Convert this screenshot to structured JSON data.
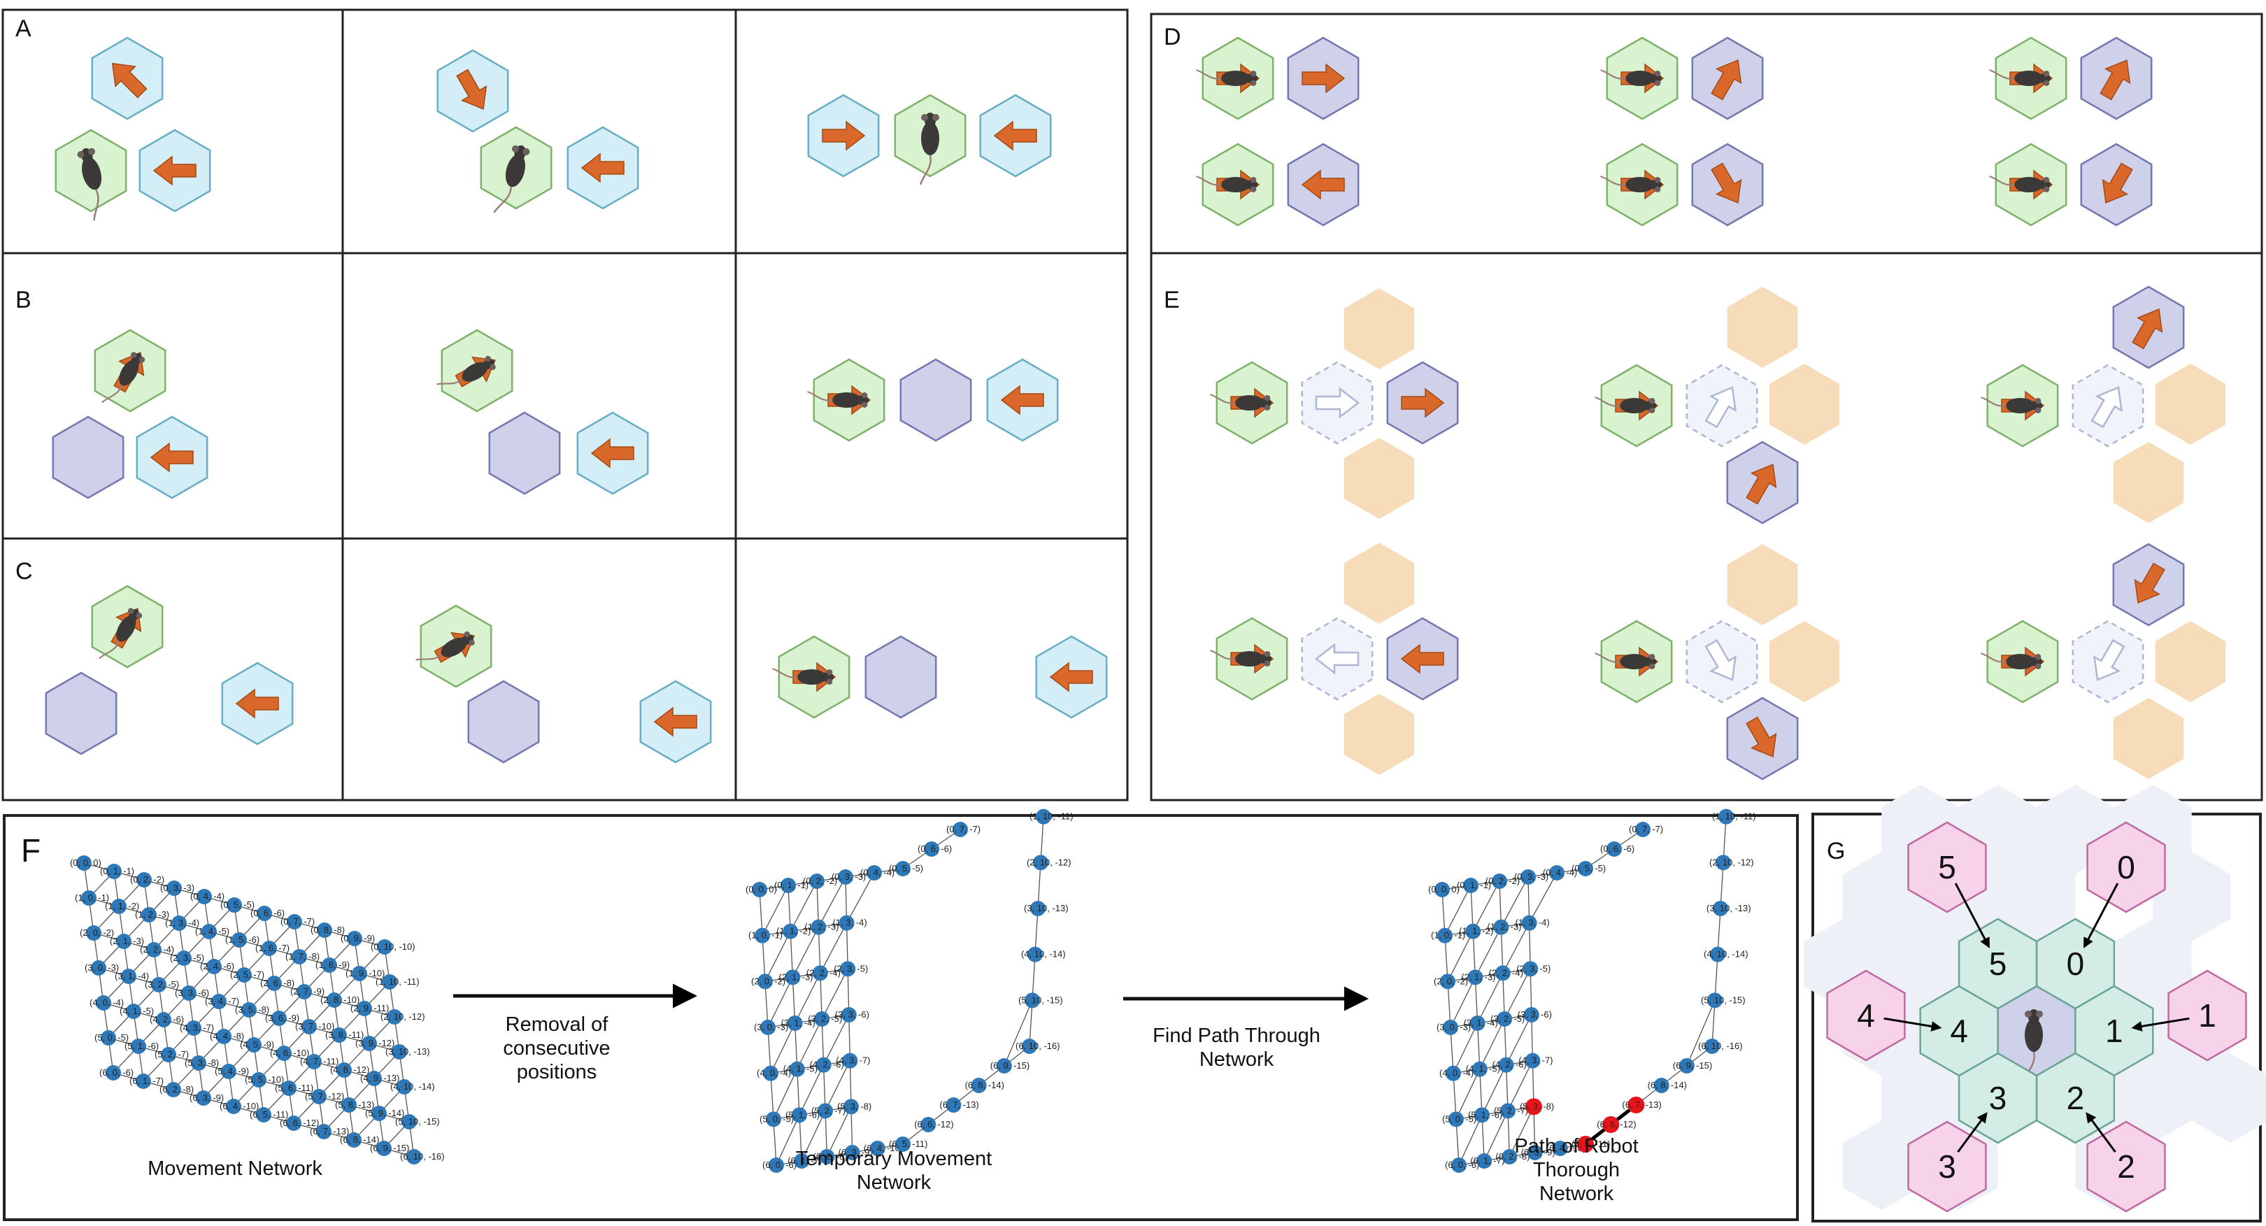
{
  "panels": {
    "A": {
      "label": "A"
    },
    "B": {
      "label": "B"
    },
    "C": {
      "label": "C"
    },
    "D": {
      "label": "D"
    },
    "E": {
      "label": "E"
    },
    "F": {
      "label": "F"
    },
    "G": {
      "label": "G"
    }
  },
  "colors": {
    "mouse_cell": "#d9f2cf",
    "mouse_cell_stroke": "#7fb26a",
    "target_cell": "#d3eef7",
    "target_cell_stroke": "#6aaec6",
    "robot_cell": "#cfd0ea",
    "robot_cell_stroke": "#7478b0",
    "blocked_cell": "#f6dcb9",
    "ghost_cell": "#f1f3fa",
    "ghost_stroke": "#aeb6d6",
    "arrow": "#d9682a",
    "node": "#2e78b7",
    "path_node": "#e8141b",
    "pink_cell": "#f6d3e9",
    "pink_stroke": "#c06aa4",
    "teal_cell": "#d3ede6",
    "teal_stroke": "#6aa596",
    "faint_cell": "#eef0f7"
  },
  "panel_F": {
    "step1_caption": "Movement Network",
    "arrow1_label": [
      "Removal of",
      "consecutive",
      "positions"
    ],
    "step2_caption": [
      "Temporary Movement",
      "Network"
    ],
    "arrow2_label": [
      "Find Path Through",
      "Network"
    ],
    "step3_caption": [
      "Path  of Robot",
      "Thorough",
      "Network"
    ],
    "node_labels": [
      "(0, 0, 0)",
      "(0, 1, -1)",
      "(0, 2, -2)",
      "(0, 3, -3)",
      "(0, 4, -4)",
      "(0, 5, -5)",
      "(0, 6, -6)",
      "(0, 7, -7)",
      "(0, 8, -8)",
      "(0, 9, -9)",
      "(0, 10, -10)",
      "(1, 0, -1)",
      "(1, 1, -2)",
      "(1, 2, -3)",
      "(1, 3, -4)",
      "(1, 4, -5)",
      "(1, 5, -6)",
      "(1, 6, -7)",
      "(1, 7, -8)",
      "(1, 8, -9)",
      "(1, 9, -10)",
      "(1, 10, -11)",
      "(2, 0, -2)",
      "(2, 1, -3)",
      "(2, 2, -4)",
      "(2, 3, -5)",
      "(2, 4, -6)",
      "(2, 5, -7)",
      "(2, 6, -8)",
      "(2, 7, -9)",
      "(2, 8, -10)",
      "(2, 9, -11)",
      "(2, 10, -12)",
      "(3, 0, -3)",
      "(3, 1, -4)",
      "(3, 2, -5)",
      "(3, 3, -6)",
      "(3, 4, -7)",
      "(3, 5, -8)",
      "(3, 6, -9)",
      "(3, 7, -10)",
      "(3, 8, -11)",
      "(3, 9, -12)",
      "(3, 10, -13)",
      "(4, 0, -4)",
      "(4, 1, -5)",
      "(4, 2, -6)",
      "(4, 3, -7)",
      "(4, 4, -8)",
      "(4, 5, -9)",
      "(4, 6, -10)",
      "(4, 7, -11)",
      "(4, 8, -12)",
      "(4, 9, -13)",
      "(4, 10, -14)",
      "(5, 0, -5)",
      "(5, 1, -6)",
      "(5, 2, -7)",
      "(5, 3, -8)",
      "(5, 4, -9)",
      "(5, 5, -10)",
      "(5, 6, -11)",
      "(5, 7, -12)",
      "(5, 8, -13)",
      "(5, 9, -14)",
      "(5, 10, -15)",
      "(6, 0, -6)",
      "(6, 1, -7)",
      "(6, 2, -8)",
      "(6, 3, -9)",
      "(6, 4, -10)",
      "(6, 5, -11)",
      "(6, 6, -12)",
      "(6, 7, -13)",
      "(6, 8, -14)",
      "(6, 9, -15)",
      "(6, 10, -16)"
    ]
  },
  "panel_G": {
    "outer_labels": [
      "0",
      "1",
      "2",
      "3",
      "4",
      "5"
    ],
    "inner_labels": [
      "0",
      "1",
      "2",
      "3",
      "4",
      "5"
    ]
  }
}
